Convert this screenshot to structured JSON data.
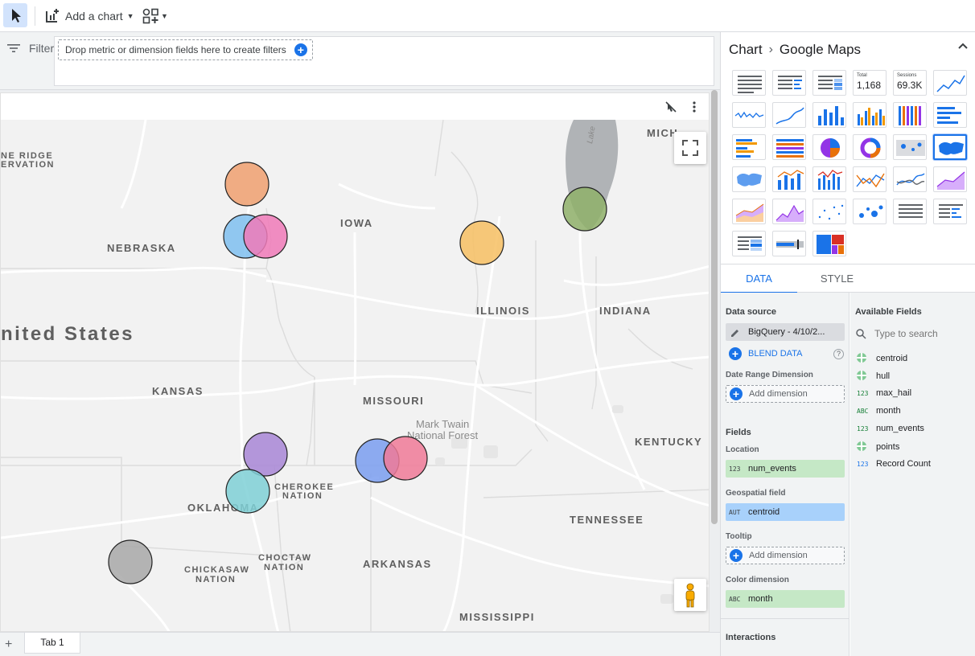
{
  "toolbar": {
    "add_chart_label": "Add a chart"
  },
  "filter": {
    "label": "Filter",
    "hint": "Drop metric or dimension fields here to create filters"
  },
  "map": {
    "labels": {
      "ne_ridge": "NE RIDGE",
      "ervation": "ERVATION",
      "nebraska": "NEBRASKA",
      "iowa": "IOWA",
      "illinois": "ILLINOIS",
      "indiana": "INDIANA",
      "michigan": "MICH",
      "us": "nited States",
      "kansas": "KANSAS",
      "missouri": "MISSOURI",
      "mark_twain_1": "Mark Twain",
      "mark_twain_2": "National Forest",
      "kentucky": "KENTUCKY",
      "cherokee_1": "CHEROKEE",
      "cherokee_2": "NATION",
      "oklahoma": "OKLAHOMA",
      "tennessee": "TENNESSEE",
      "choctaw_1": "CHOCTAW",
      "choctaw_2": "NATION",
      "chickasaw_1": "CHICKASAW",
      "chickasaw_2": "NATION",
      "arkansas": "ARKANSAS",
      "mississippi": "MISSISSIPPI",
      "lake": "Lake"
    },
    "bubbles": [
      {
        "name": "bubble-nebraska-orange",
        "color": "#f0a070"
      },
      {
        "name": "bubble-nebraska-blue",
        "color": "#7fbff0"
      },
      {
        "name": "bubble-nebraska-pink",
        "color": "#f07ab8"
      },
      {
        "name": "bubble-illinois-yellow",
        "color": "#f7bf63"
      },
      {
        "name": "bubble-chicago-green",
        "color": "#8fb06a"
      },
      {
        "name": "bubble-kansas-purple",
        "color": "#a886d6"
      },
      {
        "name": "bubble-oklahoma-teal",
        "color": "#7fd0d6"
      },
      {
        "name": "bubble-missouri-blue",
        "color": "#7a9ef0"
      },
      {
        "name": "bubble-missouri-pink",
        "color": "#f07a98"
      },
      {
        "name": "bubble-texas-gray",
        "color": "#a8a8a8"
      }
    ]
  },
  "tabs": {
    "add": "+",
    "tab1": "Tab 1"
  },
  "panel": {
    "breadcrumb_root": "Chart",
    "breadcrumb_current": "Google Maps",
    "scorecard_total_label": "Total",
    "scorecard_total_value": "1,168",
    "scorecard_sessions_label": "Sessions",
    "scorecard_sessions_value": "69.3K",
    "tab_data": "DATA",
    "tab_style": "STYLE",
    "data_source_heading": "Data source",
    "data_source_value": "BigQuery - 4/10/2...",
    "blend_data": "BLEND DATA",
    "date_range_heading": "Date Range Dimension",
    "add_dimension": "Add dimension",
    "fields_heading": "Fields",
    "location_heading": "Location",
    "location_field": "num_events",
    "location_tag": "123",
    "geo_heading": "Geospatial field",
    "geo_field": "centroid",
    "geo_tag": "AUT",
    "tooltip_heading": "Tooltip",
    "color_heading": "Color dimension",
    "color_field": "month",
    "color_tag": "ABC",
    "interactions_heading": "Interactions",
    "available_heading": "Available Fields",
    "search_placeholder": "Type to search",
    "available_fields": [
      {
        "icon": "globe",
        "name": "centroid"
      },
      {
        "icon": "globe",
        "name": "hull"
      },
      {
        "icon": "123",
        "name": "max_hail"
      },
      {
        "icon": "ABC",
        "name": "month"
      },
      {
        "icon": "123",
        "name": "num_events"
      },
      {
        "icon": "globe",
        "name": "points"
      },
      {
        "icon": "123",
        "name": "Record Count"
      }
    ]
  },
  "colors": {
    "accent": "#1a73e8",
    "field_green": "#c5e8c6",
    "field_blue": "#a8d1fb"
  }
}
